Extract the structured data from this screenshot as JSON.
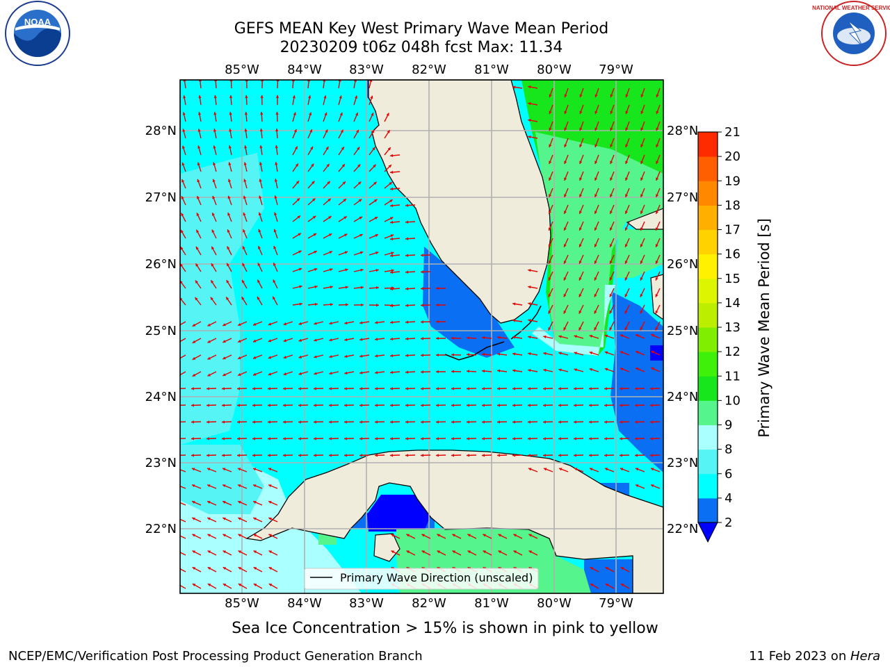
{
  "title_line1": "GEFS MEAN Key West Primary Wave Mean Period",
  "title_line2": "20230209 t06z 048h fcst   Max: 11.34",
  "lon_labels": [
    "85°W",
    "84°W",
    "83°W",
    "82°W",
    "81°W",
    "80°W",
    "79°W"
  ],
  "lat_labels": [
    "28°N",
    "27°N",
    "26°N",
    "25°N",
    "24°N",
    "23°N",
    "22°N"
  ],
  "map_extent": {
    "lon_min": -85.97,
    "lon_max": -78.27,
    "lat_min": 21.03,
    "lat_max": 28.75
  },
  "colorbar": {
    "label": "Primary Wave Mean Period [s]",
    "tick_values": [
      "2",
      "4",
      "6",
      "8",
      "9",
      "10",
      "11",
      "12",
      "13",
      "14",
      "15",
      "16",
      "17",
      "18",
      "19",
      "20",
      "21"
    ],
    "colors": [
      "#0a6ff2",
      "#00ffff",
      "#56f4f4",
      "#aaffff",
      "#55f48c",
      "#16e61b",
      "#3ef00a",
      "#80ee00",
      "#bcee00",
      "#ddf500",
      "#fff100",
      "#ffd200",
      "#ffaf00",
      "#ff8800",
      "#ff5f00",
      "#ff2b00"
    ],
    "extend_min_color": "#0000ff"
  },
  "legend": {
    "label": "Primary Wave Direction (unscaled)"
  },
  "sea_ice_note": "Sea Ice Concentration > 15% is shown in pink to yellow",
  "footer_left": "NCEP/EMC/Verification Post Processing Product Generation Branch",
  "footer_right_prefix": "11 Feb 2023 on ",
  "footer_right_host": "Hera",
  "logos": {
    "noaa_text": "NOAA",
    "nws_text": "NATIONAL WEATHER SERVICE"
  },
  "colors": {
    "land": "#efecdc",
    "arrow": "#e60000",
    "grid": "#b0b0b0",
    "cyan": "#00ffff",
    "blue": "#0a6ff2",
    "green": "#16e61b",
    "lightgreen": "#55f48c",
    "lightcyan": "#aaffff"
  }
}
